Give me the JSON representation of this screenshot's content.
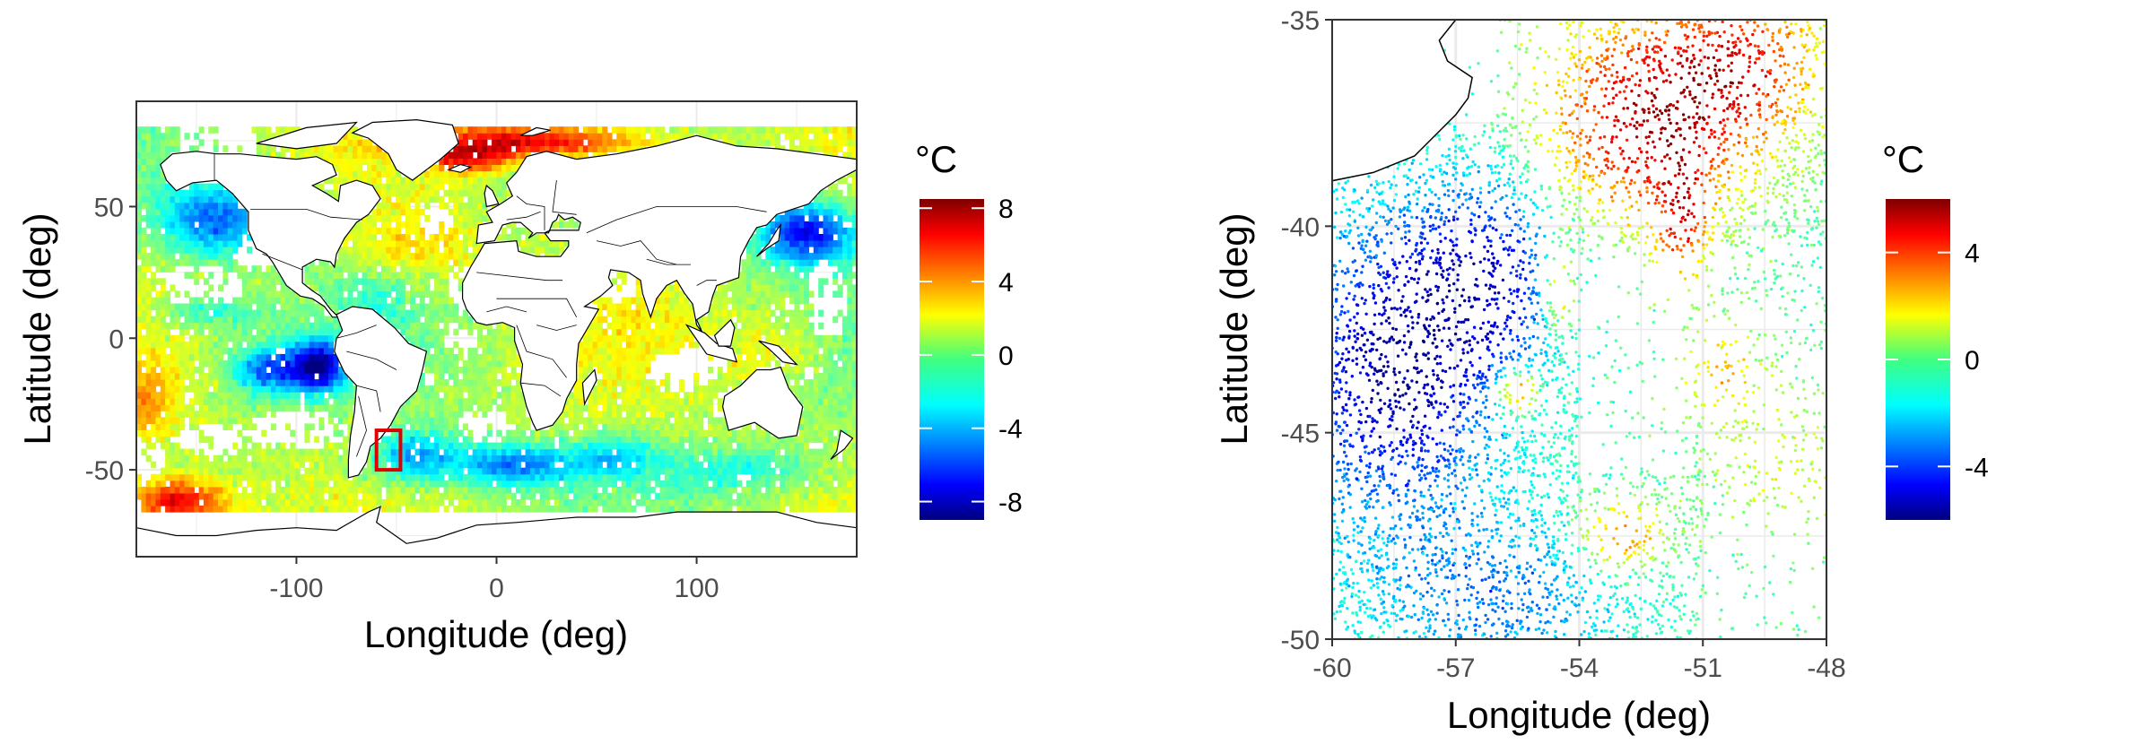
{
  "chart_data": [
    {
      "type": "heatmap",
      "subtype": "geographic-map",
      "xlabel": "Longitude (deg)",
      "ylabel": "Latitude (deg)",
      "xlim": [
        -180,
        180
      ],
      "ylim": [
        -83,
        90
      ],
      "x_ticks": [
        "-100",
        "0",
        "100"
      ],
      "x_tick_values": [
        -100,
        0,
        100
      ],
      "y_ticks": [
        "-50",
        "0",
        "50"
      ],
      "y_tick_values": [
        -50,
        0,
        50
      ],
      "grid": true,
      "background": "#ffffff",
      "colorbar": {
        "title": "°C",
        "min": -9,
        "max": 8.5,
        "ticks": [
          "8",
          "4",
          "0",
          "-4",
          "-8"
        ],
        "tick_values": [
          8,
          4,
          0,
          -4,
          -8
        ],
        "colormap": "jet",
        "placement": "right"
      },
      "highlight_box": {
        "lon": [
          -60,
          -48
        ],
        "lat": [
          -50,
          -35
        ],
        "color": "#e00000"
      },
      "values_note": "Ocean temperature anomaly field; warm (red) in the Arctic/NE Atlantic and Southern ocean near 150W–180W, cold (blue) in the North Pacific, SE Pacific and South Atlantic/Southern Ocean near 60W–20E."
    },
    {
      "type": "scatter",
      "subtype": "geographic-map",
      "xlabel": "Longitude (deg)",
      "ylabel": "Latitude (deg)",
      "xlim": [
        -60,
        -48
      ],
      "ylim": [
        -50,
        -35
      ],
      "x_ticks": [
        "-60",
        "-57",
        "-54",
        "-51",
        "-48"
      ],
      "x_tick_values": [
        -60,
        -57,
        -54,
        -51,
        -48
      ],
      "y_ticks": [
        "-35",
        "-40",
        "-45",
        "-50"
      ],
      "y_tick_values": [
        -35,
        -40,
        -45,
        -50
      ],
      "grid": true,
      "background": "#ffffff",
      "colorbar": {
        "title": "°C",
        "min": -6,
        "max": 6,
        "ticks": [
          "4",
          "0",
          "-4"
        ],
        "tick_values": [
          4,
          0,
          -4
        ],
        "colormap": "jet",
        "placement": "right"
      }
    }
  ]
}
